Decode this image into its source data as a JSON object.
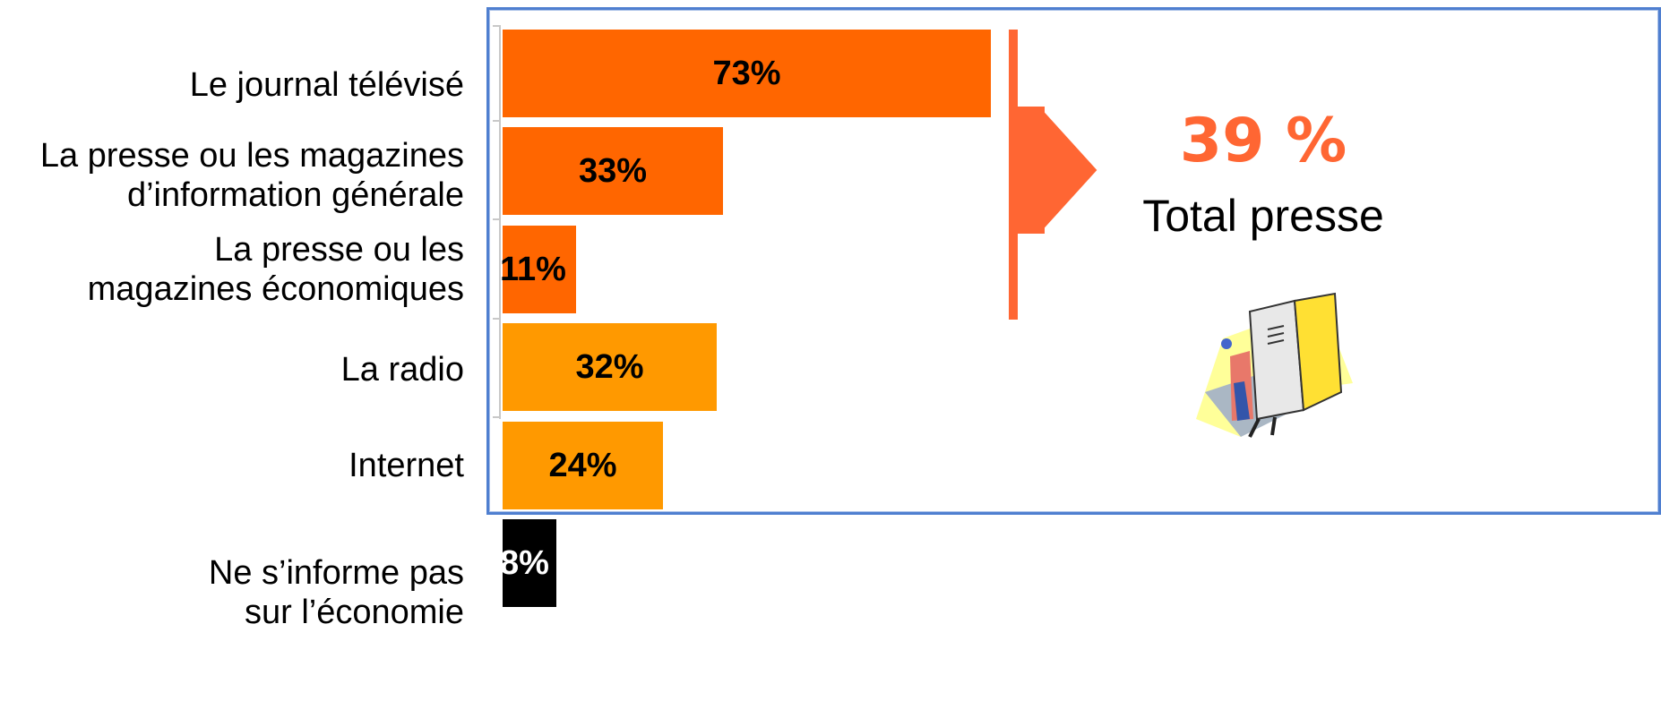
{
  "chart_data": {
    "type": "bar",
    "orientation": "horizontal",
    "categories": [
      "Le journal télévisé",
      "La presse ou les magazines\nd’information générale",
      "La presse ou les\nmagazines économiques",
      "La radio",
      "Internet",
      "Ne s’informe pas\nsur l’économie"
    ],
    "values": [
      73,
      33,
      11,
      32,
      24,
      8
    ],
    "value_labels": [
      "73%",
      "33%",
      "11%",
      "32%",
      "24%",
      "8%"
    ],
    "bar_colors": [
      "#ff6600",
      "#ff6600",
      "#ff6600",
      "#ff9900",
      "#ff9900",
      "#000000"
    ],
    "label_colors": [
      "#000000",
      "#000000",
      "#000000",
      "#000000",
      "#000000",
      "#ffffff"
    ],
    "xlim": [
      0,
      100
    ],
    "grid": false
  },
  "callout": {
    "value": "39 %",
    "label": "Total presse",
    "value_color": "#ff6633",
    "arrow_color": "#ff6633",
    "icon": "person-reading-newspaper-icon"
  }
}
